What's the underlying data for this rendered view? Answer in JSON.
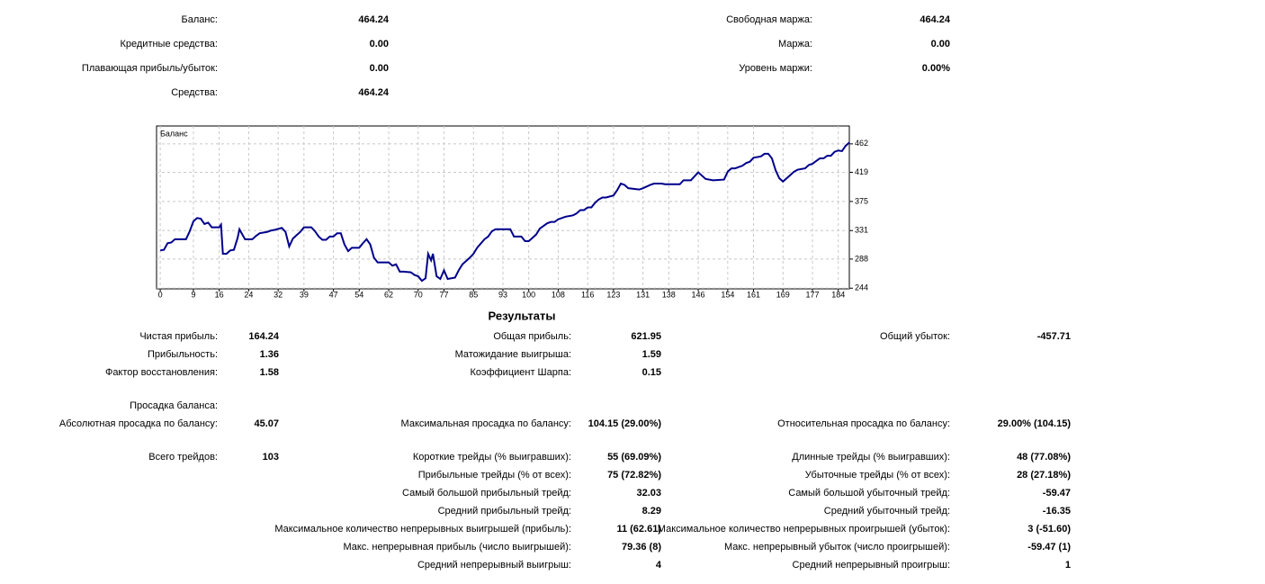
{
  "account": {
    "left": [
      {
        "label": "Баланс:",
        "value": "464.24"
      },
      {
        "label": "Кредитные средства:",
        "value": "0.00"
      },
      {
        "label": "Плавающая прибыль/убыток:",
        "value": "0.00"
      },
      {
        "label": "Средства:",
        "value": "464.24"
      }
    ],
    "right": [
      {
        "label": "Свободная маржа:",
        "value": "464.24"
      },
      {
        "label": "Маржа:",
        "value": "0.00"
      },
      {
        "label": "Уровень маржи:",
        "value": "0.00%"
      }
    ]
  },
  "chart_data": {
    "type": "line",
    "title": "Баланс",
    "x": [
      0,
      1,
      2,
      3,
      4,
      7,
      8,
      9,
      10,
      11,
      12,
      13,
      14,
      16,
      16.5,
      17,
      18,
      19,
      20,
      21,
      21.5,
      22,
      23,
      25,
      26,
      27,
      29,
      30,
      31,
      33,
      34,
      35,
      36,
      37,
      38,
      39,
      41,
      42,
      43,
      44,
      45,
      46,
      47,
      48,
      49,
      50,
      51,
      52,
      54,
      55,
      56,
      57,
      58,
      59,
      62,
      63,
      64,
      65,
      66,
      68,
      69,
      70,
      71,
      72,
      72.7,
      73.5,
      74,
      75,
      76,
      77,
      78,
      80,
      81,
      82,
      84,
      85,
      86,
      88,
      89,
      90,
      91,
      95,
      96,
      98,
      99,
      100,
      101,
      102,
      103,
      105,
      106,
      107,
      108,
      110,
      112,
      113,
      114,
      115,
      116,
      117,
      118,
      119,
      120,
      121,
      123,
      124,
      125,
      126,
      127,
      130,
      131,
      133,
      134,
      136,
      137,
      141,
      142,
      144,
      145,
      146,
      147,
      148,
      150,
      153,
      154,
      155,
      156,
      158,
      159,
      160,
      161,
      163,
      164,
      165,
      166,
      167,
      168,
      169,
      170,
      171,
      172,
      173,
      175,
      176,
      177,
      178,
      179,
      180,
      181,
      182,
      183,
      184,
      185,
      186,
      187
    ],
    "series": [
      {
        "color": "#00008b",
        "values": [
          301,
          302,
          312,
          313,
          318,
          318,
          330,
          345,
          350,
          349,
          341,
          343,
          336,
          336,
          340,
          296,
          296,
          301,
          302,
          320,
          333,
          328,
          318,
          318,
          323,
          327,
          329,
          331,
          332,
          335,
          329,
          307,
          319,
          324,
          329,
          336,
          336,
          330,
          322,
          317,
          317,
          322,
          322,
          327,
          327,
          310,
          300,
          305,
          305,
          312,
          318,
          310,
          290,
          283,
          283,
          278,
          280,
          269,
          269,
          268,
          264,
          262,
          255,
          259,
          296,
          286,
          296,
          262,
          258,
          271,
          258,
          260,
          271,
          280,
          290,
          296,
          305,
          318,
          322,
          330,
          333,
          333,
          322,
          322,
          315,
          315,
          320,
          325,
          334,
          342,
          344,
          344,
          348,
          352,
          354,
          357,
          362,
          362,
          366,
          366,
          373,
          378,
          381,
          381,
          384,
          392,
          402,
          400,
          395,
          393,
          395,
          400,
          402,
          402,
          401,
          401,
          407,
          407,
          413,
          419,
          414,
          409,
          407,
          408,
          420,
          425,
          425,
          429,
          433,
          435,
          441,
          443,
          447,
          447,
          440,
          422,
          410,
          405,
          410,
          415,
          420,
          423,
          425,
          430,
          432,
          436,
          440,
          440,
          444,
          444,
          450,
          452,
          451,
          459,
          464
        ]
      }
    ],
    "xlim": [
      -1,
      187
    ],
    "xticks": [
      0,
      9,
      16,
      24,
      32,
      39,
      47,
      54,
      62,
      70,
      77,
      85,
      93,
      100,
      108,
      116,
      123,
      131,
      138,
      146,
      154,
      161,
      169,
      177,
      184
    ],
    "ylim": [
      243,
      489
    ],
    "yticks": [
      244,
      288,
      331,
      375,
      419,
      462
    ],
    "grid": true
  },
  "results": {
    "title": "Результаты",
    "rows": [
      {
        "left": {
          "label": "Чистая прибыль:",
          "value": "164.24"
        },
        "middle": {
          "label": "Общая прибыль:",
          "value": "621.95"
        },
        "right": {
          "label": "Общий убыток:",
          "value": "-457.71"
        }
      },
      {
        "left": {
          "label": "Прибыльность:",
          "value": "1.36"
        },
        "middle": {
          "label": "Матожидание выигрыша:",
          "value": "1.59"
        }
      },
      {
        "left": {
          "label": "Фактор восстановления:",
          "value": "1.58"
        },
        "middle": {
          "label": "Коэффициент Шарпа:",
          "value": "0.15"
        }
      },
      {
        "left": {
          "label": "Просадка баланса:"
        }
      },
      {
        "left": {
          "label": "Абсолютная просадка по балансу:",
          "value": "45.07"
        },
        "middle": {
          "label": "Максимальная просадка по балансу:",
          "value": "104.15 (29.00%)"
        },
        "right": {
          "label": "Относительная просадка по балансу:",
          "value": "29.00% (104.15)"
        }
      },
      {
        "left": {
          "label": "Всего трейдов:",
          "value": "103"
        },
        "middle": {
          "label": "Короткие трейды (% выигравших):",
          "value": "55 (69.09%)"
        },
        "right": {
          "label": "Длинные трейды (% выигравших):",
          "value": "48 (77.08%)"
        }
      },
      {
        "middle": {
          "label": "Прибыльные трейды (% от всех):",
          "value": "75 (72.82%)"
        },
        "right": {
          "label": "Убыточные трейды (% от всех):",
          "value": "28 (27.18%)"
        }
      },
      {
        "middle": {
          "label": "Самый большой прибыльный трейд:",
          "value": "32.03"
        },
        "right": {
          "label": "Самый большой убыточный трейд:",
          "value": "-59.47"
        }
      },
      {
        "middle": {
          "label": "Средний прибыльный трейд:",
          "value": "8.29"
        },
        "right": {
          "label": "Средний убыточный трейд:",
          "value": "-16.35"
        }
      },
      {
        "middle": {
          "label": "Максимальное количество непрерывных выигрышей (прибыль):",
          "value": "11 (62.61)"
        },
        "right": {
          "label": "Максимальное количество непрерывных проигрышей (убыток):",
          "value": "3 (-51.60)"
        }
      },
      {
        "middle": {
          "label": "Макс. непрерывная прибыль (число выигрышей):",
          "value": "79.36 (8)"
        },
        "right": {
          "label": "Макс. непрерывный убыток (число проигрышей):",
          "value": "-59.47 (1)"
        }
      },
      {
        "middle": {
          "label": "Средний непрерывный выигрыш:",
          "value": "4"
        },
        "right": {
          "label": "Средний непрерывный проигрыш:",
          "value": "1"
        }
      }
    ]
  }
}
